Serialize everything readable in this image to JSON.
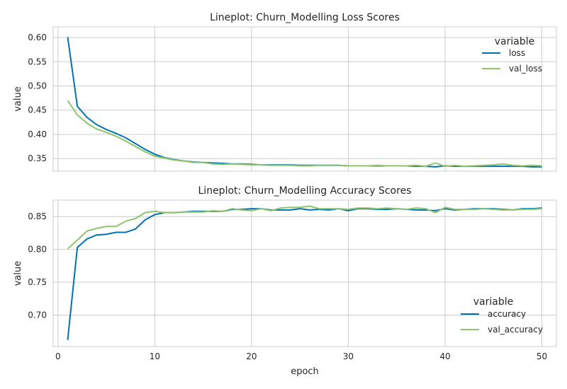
{
  "chart_data": [
    {
      "type": "line",
      "title": "Lineplot: Churn_Modelling Loss Scores",
      "xlabel": "",
      "ylabel": "value",
      "xlim": [
        -0.5,
        51.5
      ],
      "ylim": [
        0.324,
        0.622
      ],
      "xticks": [
        0,
        10,
        20,
        30,
        40,
        50
      ],
      "yticks": [
        0.35,
        0.4,
        0.45,
        0.5,
        0.55,
        0.6
      ],
      "ytick_labels": [
        "0.35",
        "0.40",
        "0.45",
        "0.50",
        "0.55",
        "0.60"
      ],
      "grid": true,
      "legend": {
        "title": "variable",
        "placement": "top-right"
      },
      "x": [
        1,
        2,
        3,
        4,
        5,
        6,
        7,
        8,
        9,
        10,
        11,
        12,
        13,
        14,
        15,
        16,
        17,
        18,
        19,
        20,
        21,
        22,
        23,
        24,
        25,
        26,
        27,
        28,
        29,
        30,
        31,
        32,
        33,
        34,
        35,
        36,
        37,
        38,
        39,
        40,
        41,
        42,
        43,
        44,
        45,
        46,
        47,
        48,
        49,
        50
      ],
      "series": [
        {
          "name": "loss",
          "color": "#0072B2",
          "values": [
            0.601,
            0.458,
            0.435,
            0.42,
            0.41,
            0.402,
            0.393,
            0.381,
            0.369,
            0.359,
            0.352,
            0.348,
            0.345,
            0.343,
            0.342,
            0.341,
            0.34,
            0.339,
            0.339,
            0.338,
            0.337,
            0.337,
            0.337,
            0.337,
            0.336,
            0.336,
            0.336,
            0.336,
            0.336,
            0.335,
            0.335,
            0.335,
            0.335,
            0.335,
            0.335,
            0.335,
            0.334,
            0.334,
            0.333,
            0.335,
            0.334,
            0.334,
            0.334,
            0.334,
            0.334,
            0.334,
            0.334,
            0.334,
            0.333,
            0.333
          ]
        },
        {
          "name": "val_loss",
          "color": "#8FC46E",
          "values": [
            0.47,
            0.44,
            0.423,
            0.411,
            0.404,
            0.396,
            0.386,
            0.375,
            0.364,
            0.355,
            0.351,
            0.347,
            0.345,
            0.342,
            0.342,
            0.339,
            0.338,
            0.339,
            0.338,
            0.337,
            0.337,
            0.336,
            0.336,
            0.336,
            0.335,
            0.335,
            0.336,
            0.336,
            0.336,
            0.335,
            0.335,
            0.335,
            0.336,
            0.335,
            0.335,
            0.335,
            0.336,
            0.334,
            0.341,
            0.334,
            0.336,
            0.334,
            0.335,
            0.336,
            0.337,
            0.339,
            0.336,
            0.335,
            0.336,
            0.335
          ]
        }
      ]
    },
    {
      "type": "line",
      "title": "Lineplot: Churn_Modelling Accuracy Scores",
      "xlabel": "epoch",
      "ylabel": "value",
      "xlim": [
        -0.5,
        51.5
      ],
      "ylim": [
        0.652,
        0.875
      ],
      "xticks": [
        0,
        10,
        20,
        30,
        40,
        50
      ],
      "yticks": [
        0.7,
        0.75,
        0.8,
        0.85
      ],
      "ytick_labels": [
        "0.70",
        "0.75",
        "0.80",
        "0.85"
      ],
      "grid": true,
      "legend": {
        "title": "variable",
        "placement": "bottom-right"
      },
      "x": [
        1,
        2,
        3,
        4,
        5,
        6,
        7,
        8,
        9,
        10,
        11,
        12,
        13,
        14,
        15,
        16,
        17,
        18,
        19,
        20,
        21,
        22,
        23,
        24,
        25,
        26,
        27,
        28,
        29,
        30,
        31,
        32,
        33,
        34,
        35,
        36,
        37,
        38,
        39,
        40,
        41,
        42,
        43,
        44,
        45,
        46,
        47,
        48,
        49,
        50
      ],
      "series": [
        {
          "name": "accuracy",
          "color": "#0072B2",
          "values": [
            0.662,
            0.803,
            0.816,
            0.822,
            0.823,
            0.826,
            0.826,
            0.831,
            0.845,
            0.853,
            0.856,
            0.856,
            0.857,
            0.858,
            0.858,
            0.858,
            0.858,
            0.861,
            0.861,
            0.862,
            0.862,
            0.86,
            0.86,
            0.86,
            0.862,
            0.86,
            0.861,
            0.86,
            0.862,
            0.859,
            0.862,
            0.862,
            0.861,
            0.861,
            0.862,
            0.861,
            0.86,
            0.86,
            0.859,
            0.862,
            0.86,
            0.861,
            0.862,
            0.862,
            0.862,
            0.861,
            0.86,
            0.862,
            0.862,
            0.863
          ]
        },
        {
          "name": "val_accuracy",
          "color": "#8FC46E",
          "values": [
            0.801,
            0.814,
            0.828,
            0.832,
            0.835,
            0.835,
            0.843,
            0.847,
            0.856,
            0.858,
            0.856,
            0.856,
            0.857,
            0.857,
            0.857,
            0.859,
            0.858,
            0.862,
            0.86,
            0.859,
            0.862,
            0.859,
            0.863,
            0.864,
            0.864,
            0.866,
            0.862,
            0.862,
            0.862,
            0.861,
            0.863,
            0.863,
            0.862,
            0.863,
            0.862,
            0.861,
            0.863,
            0.862,
            0.856,
            0.864,
            0.861,
            0.861,
            0.861,
            0.862,
            0.861,
            0.86,
            0.86,
            0.861,
            0.861,
            0.862
          ]
        }
      ]
    }
  ]
}
